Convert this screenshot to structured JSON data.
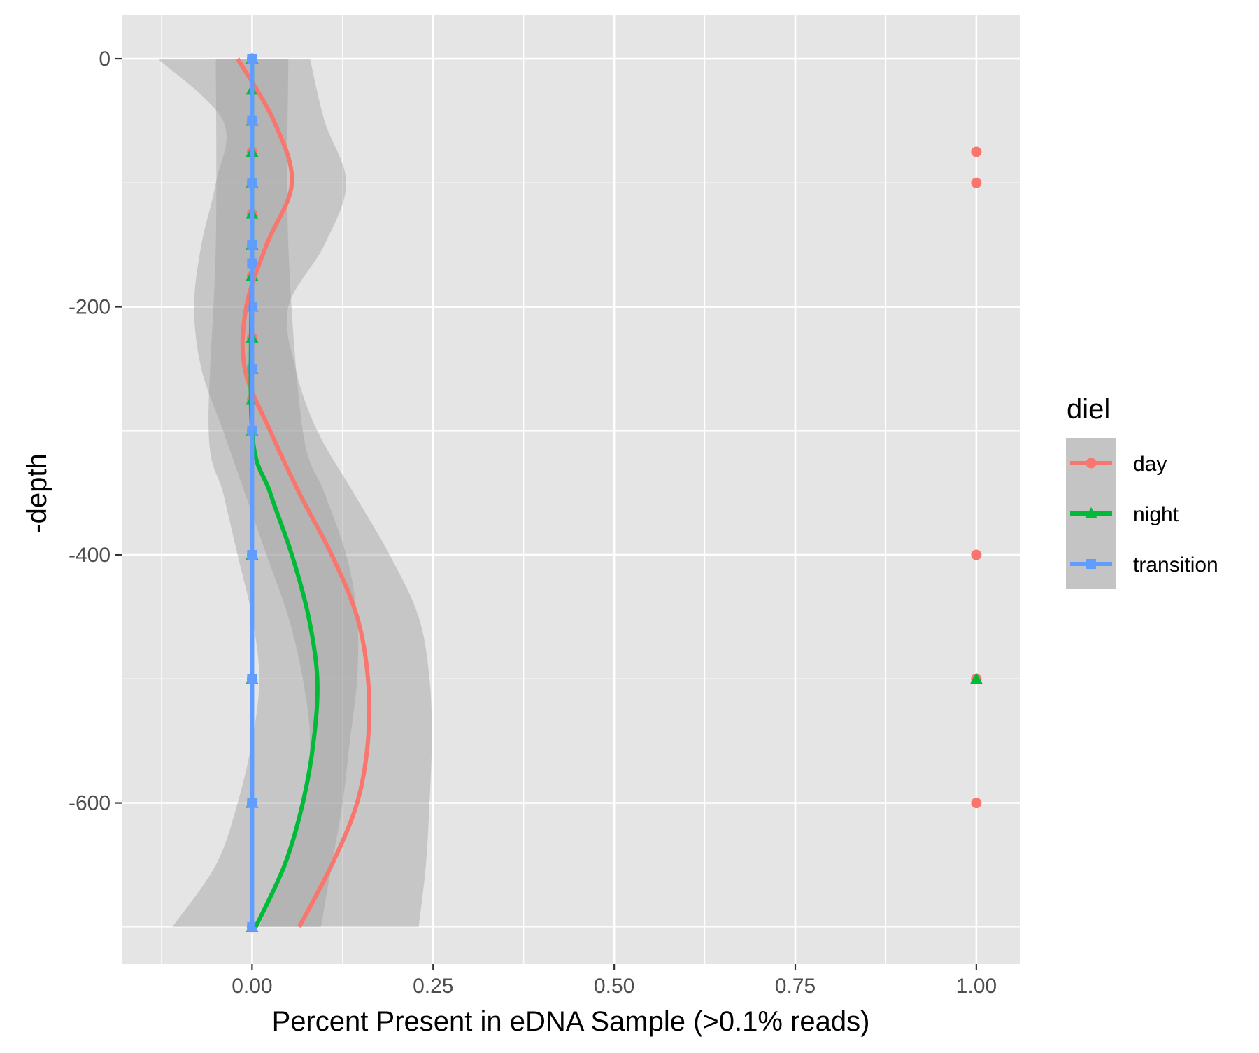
{
  "chart_data": {
    "type": "scatter",
    "title": "",
    "xlabel": "Percent Present in eDNA Sample (>0.1% reads)",
    "ylabel": "-depth",
    "xlim": [
      -0.18,
      1.06
    ],
    "ylim": [
      -730,
      35
    ],
    "x_ticks": [
      0.0,
      0.25,
      0.5,
      0.75,
      1.0
    ],
    "x_tick_labels": [
      "0.00",
      "0.25",
      "0.50",
      "0.75",
      "1.00"
    ],
    "y_ticks": [
      0,
      -200,
      -400,
      -600
    ],
    "y_tick_labels": [
      "0",
      "-200",
      "-400",
      "-600"
    ],
    "grid": true,
    "panel_background": "#e5e5e5",
    "legend": {
      "title": "diel",
      "position": "right",
      "entries": [
        "day",
        "night",
        "transition"
      ]
    },
    "series": [
      {
        "name": "day",
        "color": "#f8766d",
        "marker": "circle",
        "points": [
          {
            "x": 0,
            "y": 0
          },
          {
            "x": 0,
            "y": -50
          },
          {
            "x": 0,
            "y": -75
          },
          {
            "x": 0,
            "y": -100
          },
          {
            "x": 0,
            "y": -125
          },
          {
            "x": 0,
            "y": -150
          },
          {
            "x": 0,
            "y": -175
          },
          {
            "x": 0,
            "y": -200
          },
          {
            "x": 0,
            "y": -225
          },
          {
            "x": 0,
            "y": -250
          },
          {
            "x": 0,
            "y": -275
          },
          {
            "x": 0,
            "y": -300
          },
          {
            "x": 0,
            "y": -400
          },
          {
            "x": 0,
            "y": -500
          },
          {
            "x": 0,
            "y": -600
          },
          {
            "x": 0,
            "y": -700
          },
          {
            "x": 1,
            "y": -75
          },
          {
            "x": 1,
            "y": -100
          },
          {
            "x": 1,
            "y": -400
          },
          {
            "x": 1,
            "y": -500
          },
          {
            "x": 1,
            "y": -600
          }
        ],
        "smooth": [
          {
            "depth": 0,
            "fit": -0.02,
            "lo": -0.13,
            "hi": 0.08
          },
          {
            "depth": -50,
            "fit": 0.03,
            "lo": -0.04,
            "hi": 0.1
          },
          {
            "depth": -100,
            "fit": 0.055,
            "lo": -0.05,
            "hi": 0.13
          },
          {
            "depth": -150,
            "fit": 0.02,
            "lo": -0.07,
            "hi": 0.1
          },
          {
            "depth": -200,
            "fit": -0.008,
            "lo": -0.08,
            "hi": 0.05
          },
          {
            "depth": -250,
            "fit": -0.01,
            "lo": -0.07,
            "hi": 0.06
          },
          {
            "depth": -300,
            "fit": 0.025,
            "lo": -0.04,
            "hi": 0.09
          },
          {
            "depth": -350,
            "fit": 0.065,
            "lo": -0.01,
            "hi": 0.14
          },
          {
            "depth": -400,
            "fit": 0.11,
            "lo": 0.02,
            "hi": 0.19
          },
          {
            "depth": -450,
            "fit": 0.145,
            "lo": 0.05,
            "hi": 0.23
          },
          {
            "depth": -500,
            "fit": 0.16,
            "lo": 0.07,
            "hi": 0.245
          },
          {
            "depth": -550,
            "fit": 0.16,
            "lo": 0.08,
            "hi": 0.248
          },
          {
            "depth": -600,
            "fit": 0.145,
            "lo": 0.07,
            "hi": 0.245
          },
          {
            "depth": -650,
            "fit": 0.11,
            "lo": 0.045,
            "hi": 0.24
          },
          {
            "depth": -700,
            "fit": 0.065,
            "lo": 0.01,
            "hi": 0.23
          }
        ]
      },
      {
        "name": "night",
        "color": "#00ba38",
        "marker": "triangle",
        "points": [
          {
            "x": 0,
            "y": 0
          },
          {
            "x": 0,
            "y": -25
          },
          {
            "x": 0,
            "y": -50
          },
          {
            "x": 0,
            "y": -75
          },
          {
            "x": 0,
            "y": -100
          },
          {
            "x": 0,
            "y": -125
          },
          {
            "x": 0,
            "y": -150
          },
          {
            "x": 0,
            "y": -175
          },
          {
            "x": 0,
            "y": -200
          },
          {
            "x": 0,
            "y": -225
          },
          {
            "x": 0,
            "y": -250
          },
          {
            "x": 0,
            "y": -275
          },
          {
            "x": 0,
            "y": -300
          },
          {
            "x": 0,
            "y": -400
          },
          {
            "x": 0,
            "y": -500
          },
          {
            "x": 0,
            "y": -600
          },
          {
            "x": 0,
            "y": -700
          },
          {
            "x": 1,
            "y": -500
          }
        ],
        "smooth": [
          {
            "depth": 0,
            "fit": 0.0,
            "lo": -0.05,
            "hi": 0.05
          },
          {
            "depth": -150,
            "fit": 0.0,
            "lo": -0.05,
            "hi": 0.05
          },
          {
            "depth": -300,
            "fit": 0.0,
            "lo": -0.06,
            "hi": 0.07
          },
          {
            "depth": -350,
            "fit": 0.025,
            "lo": -0.04,
            "hi": 0.1
          },
          {
            "depth": -400,
            "fit": 0.055,
            "lo": -0.02,
            "hi": 0.13
          },
          {
            "depth": -450,
            "fit": 0.078,
            "lo": 0.0,
            "hi": 0.145
          },
          {
            "depth": -500,
            "fit": 0.09,
            "lo": 0.01,
            "hi": 0.145
          },
          {
            "depth": -550,
            "fit": 0.085,
            "lo": 0.0,
            "hi": 0.135
          },
          {
            "depth": -600,
            "fit": 0.07,
            "lo": -0.02,
            "hi": 0.125
          },
          {
            "depth": -650,
            "fit": 0.045,
            "lo": -0.05,
            "hi": 0.11
          },
          {
            "depth": -700,
            "fit": 0.005,
            "lo": -0.11,
            "hi": 0.095
          }
        ]
      },
      {
        "name": "transition",
        "color": "#619cff",
        "marker": "square",
        "points": [
          {
            "x": 0,
            "y": 0
          },
          {
            "x": 0,
            "y": -50
          },
          {
            "x": 0,
            "y": -100
          },
          {
            "x": 0,
            "y": -150
          },
          {
            "x": 0,
            "y": -165
          },
          {
            "x": 0,
            "y": -200
          },
          {
            "x": 0,
            "y": -250
          },
          {
            "x": 0,
            "y": -300
          },
          {
            "x": 0,
            "y": -400
          },
          {
            "x": 0,
            "y": -500
          },
          {
            "x": 0,
            "y": -600
          },
          {
            "x": 0,
            "y": -700
          }
        ],
        "smooth": [
          {
            "depth": 0,
            "fit": 0.0,
            "lo": 0.0,
            "hi": 0.0
          },
          {
            "depth": -700,
            "fit": 0.0,
            "lo": 0.0,
            "hi": 0.0
          }
        ]
      }
    ]
  }
}
